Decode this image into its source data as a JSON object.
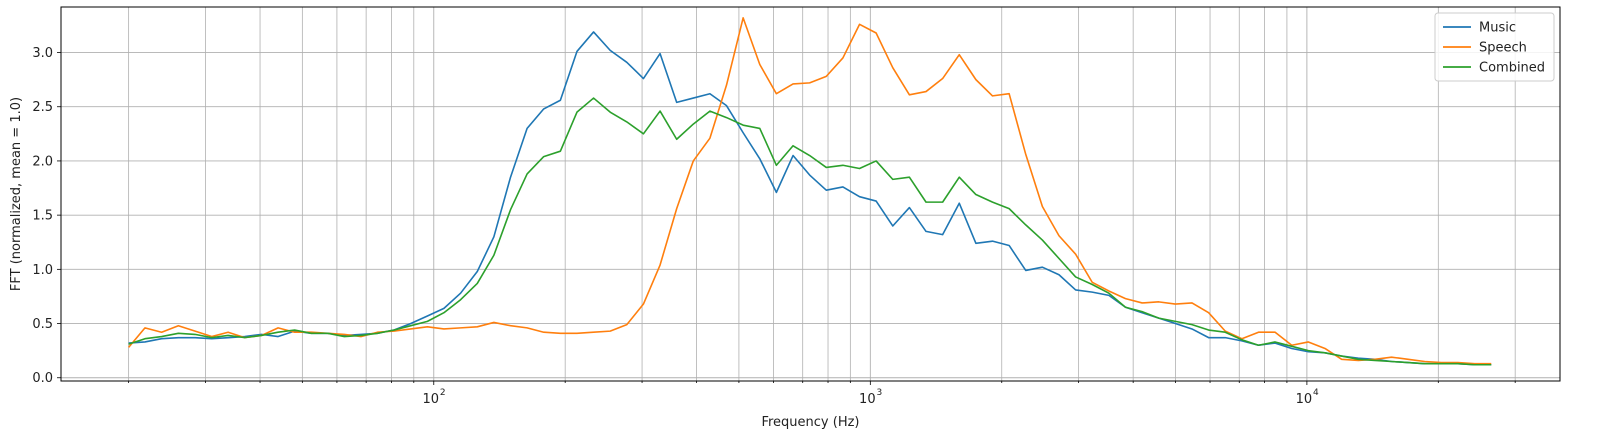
{
  "chart_data": {
    "type": "line",
    "title": "",
    "xlabel": "Frequency (Hz)",
    "ylabel": "FFT (normalized, mean = 1.0)",
    "xscale": "log",
    "xlim": [
      14,
      38000
    ],
    "ylim": [
      -0.03,
      3.42
    ],
    "grid": true,
    "legend": "top-right",
    "x_ticks": [
      {
        "value": 100,
        "label": "10",
        "sup": "2"
      },
      {
        "value": 1000,
        "label": "10",
        "sup": "3"
      },
      {
        "value": 10000,
        "label": "10",
        "sup": "4"
      }
    ],
    "y_ticks": [
      {
        "value": 0.0,
        "label": "0.0"
      },
      {
        "value": 0.5,
        "label": "0.5"
      },
      {
        "value": 1.0,
        "label": "1.0"
      },
      {
        "value": 1.5,
        "label": "1.5"
      },
      {
        "value": 2.0,
        "label": "2.0"
      },
      {
        "value": 2.5,
        "label": "2.5"
      },
      {
        "value": 3.0,
        "label": "3.0"
      }
    ],
    "x": [
      20,
      21.8,
      23.8,
      26,
      28.4,
      31,
      33.8,
      36.9,
      40.3,
      44,
      48,
      52.4,
      57.2,
      62.4,
      68.1,
      74.3,
      81.1,
      88.6,
      96.7,
      105.5,
      115.2,
      125.8,
      137.3,
      149.9,
      163.6,
      178.6,
      195,
      212.8,
      232.3,
      253.6,
      276.8,
      302.2,
      329.9,
      360.1,
      393.1,
      429.1,
      468.4,
      511.3,
      558.2,
      609.3,
      665.2,
      726.1,
      792.7,
      865.3,
      944.6,
      1031.1,
      1125.6,
      1228.8,
      1341.4,
      1464.3,
      1598.5,
      1745,
      1904.9,
      2079.4,
      2270,
      2478,
      2705.1,
      2953,
      3223.6,
      3519.1,
      3841.6,
      4193.6,
      4578,
      4997.5,
      5455.5,
      5955.5,
      6501.3,
      7097.1,
      7747.5,
      8457.5,
      9232.6,
      10078.7,
      11002.3,
      12010.6,
      13111.3,
      14312.9,
      15624.6,
      17056.5,
      18619.6,
      20326,
      22188.8,
      24222.2,
      26442
    ],
    "series": [
      {
        "name": "Music",
        "color": "#1f77b4",
        "values": [
          0.32,
          0.33,
          0.36,
          0.37,
          0.37,
          0.36,
          0.37,
          0.38,
          0.4,
          0.38,
          0.43,
          0.41,
          0.41,
          0.39,
          0.4,
          0.41,
          0.44,
          0.5,
          0.57,
          0.64,
          0.78,
          0.98,
          1.3,
          1.85,
          2.3,
          2.48,
          2.56,
          3.01,
          3.19,
          3.02,
          2.91,
          2.76,
          2.99,
          2.54,
          2.58,
          2.62,
          2.51,
          2.26,
          2.02,
          1.71,
          2.05,
          1.87,
          1.73,
          1.76,
          1.67,
          1.63,
          1.4,
          1.57,
          1.35,
          1.32,
          1.61,
          1.24,
          1.26,
          1.22,
          0.99,
          1.02,
          0.95,
          0.81,
          0.79,
          0.76,
          0.65,
          0.6,
          0.55,
          0.5,
          0.45,
          0.37,
          0.37,
          0.34,
          0.3,
          0.32,
          0.27,
          0.24,
          0.23,
          0.2,
          0.18,
          0.17,
          0.15,
          0.14,
          0.13,
          0.13,
          0.13,
          0.12,
          0.12
        ]
      },
      {
        "name": "Speech",
        "color": "#ff7f0e",
        "values": [
          0.28,
          0.46,
          0.42,
          0.48,
          0.43,
          0.38,
          0.42,
          0.37,
          0.39,
          0.46,
          0.42,
          0.42,
          0.41,
          0.4,
          0.38,
          0.42,
          0.43,
          0.45,
          0.47,
          0.45,
          0.46,
          0.47,
          0.51,
          0.48,
          0.46,
          0.42,
          0.41,
          0.41,
          0.42,
          0.43,
          0.49,
          0.68,
          1.04,
          1.56,
          2.0,
          2.21,
          2.7,
          3.32,
          2.89,
          2.62,
          2.71,
          2.72,
          2.78,
          2.95,
          3.26,
          3.18,
          2.86,
          2.61,
          2.64,
          2.76,
          2.98,
          2.75,
          2.6,
          2.62,
          2.06,
          1.58,
          1.31,
          1.14,
          0.88,
          0.8,
          0.73,
          0.69,
          0.7,
          0.68,
          0.69,
          0.6,
          0.43,
          0.36,
          0.42,
          0.42,
          0.3,
          0.33,
          0.27,
          0.17,
          0.16,
          0.17,
          0.19,
          0.17,
          0.15,
          0.14,
          0.14,
          0.13,
          0.13
        ]
      },
      {
        "name": "Combined",
        "color": "#2ca02c",
        "values": [
          0.31,
          0.36,
          0.38,
          0.41,
          0.4,
          0.37,
          0.39,
          0.37,
          0.39,
          0.42,
          0.44,
          0.41,
          0.41,
          0.38,
          0.39,
          0.41,
          0.44,
          0.48,
          0.52,
          0.6,
          0.72,
          0.87,
          1.13,
          1.55,
          1.88,
          2.04,
          2.09,
          2.45,
          2.58,
          2.45,
          2.36,
          2.25,
          2.46,
          2.2,
          2.34,
          2.46,
          2.4,
          2.33,
          2.3,
          1.96,
          2.14,
          2.05,
          1.94,
          1.96,
          1.93,
          2.0,
          1.83,
          1.85,
          1.62,
          1.62,
          1.85,
          1.69,
          1.62,
          1.56,
          1.41,
          1.27,
          1.1,
          0.93,
          0.86,
          0.78,
          0.65,
          0.61,
          0.55,
          0.52,
          0.49,
          0.44,
          0.42,
          0.35,
          0.3,
          0.33,
          0.29,
          0.25,
          0.23,
          0.2,
          0.17,
          0.16,
          0.15,
          0.14,
          0.13,
          0.13,
          0.13,
          0.12,
          0.12
        ]
      }
    ]
  }
}
